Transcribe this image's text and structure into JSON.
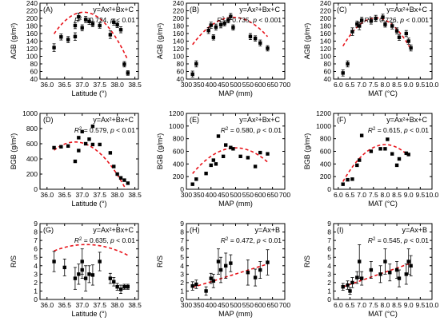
{
  "chart_data": [
    {
      "id": "A",
      "type": "scatter",
      "label": "(A)",
      "formula": "y=Ax²+Bx+C",
      "stat": {
        "r2": "0.724",
        "p": "< 0.01"
      },
      "xlabel": "Latitude (°)",
      "ylabel": "AGB (g/m²)",
      "xlim": [
        35.8,
        38.6
      ],
      "ylim": [
        40,
        240
      ],
      "xticks": [
        "36.0",
        "36.5",
        "37.0",
        "37.5",
        "38.0",
        "38.5"
      ],
      "yticks": [
        "40",
        "60",
        "80",
        "100",
        "120",
        "140",
        "160",
        "180",
        "200",
        "220",
        "240"
      ],
      "points": [
        [
          36.2,
          123,
          10
        ],
        [
          36.4,
          151,
          8
        ],
        [
          36.6,
          144,
          8
        ],
        [
          36.8,
          152,
          10
        ],
        [
          36.8,
          181,
          8
        ],
        [
          36.9,
          204,
          10
        ],
        [
          37.0,
          175,
          8
        ],
        [
          37.1,
          197,
          8
        ],
        [
          37.2,
          192,
          8
        ],
        [
          37.3,
          185,
          7
        ],
        [
          37.5,
          181,
          7
        ],
        [
          37.8,
          157,
          10
        ],
        [
          37.9,
          190,
          8
        ],
        [
          38.0,
          183,
          7
        ],
        [
          38.1,
          170,
          8
        ],
        [
          38.2,
          79,
          7
        ],
        [
          38.3,
          56,
          6
        ]
      ],
      "fit": {
        "a": -80,
        "b": 5927,
        "c": -109563
      }
    },
    {
      "id": "B",
      "type": "scatter",
      "label": "(B)",
      "formula": "y=Ax²+Bx+C",
      "stat": {
        "r2": "0.735",
        "p": "< 0.001"
      },
      "xlabel": "MAP (mm)",
      "ylabel": "AGB (g/m²)",
      "xlim": [
        300,
        700
      ],
      "ylim": [
        40,
        240
      ],
      "xticks": [
        "300",
        "350",
        "400",
        "450",
        "500",
        "550",
        "600",
        "650",
        "700"
      ],
      "yticks": [
        "40",
        "60",
        "80",
        "100",
        "120",
        "140",
        "160",
        "180",
        "200",
        "220",
        "240"
      ],
      "points": [
        [
          325,
          53,
          8
        ],
        [
          340,
          80,
          8
        ],
        [
          390,
          168,
          8
        ],
        [
          400,
          182,
          8
        ],
        [
          410,
          150,
          7
        ],
        [
          420,
          177,
          8
        ],
        [
          440,
          183,
          8
        ],
        [
          455,
          187,
          7
        ],
        [
          470,
          195,
          7
        ],
        [
          480,
          205,
          8
        ],
        [
          490,
          176,
          7
        ],
        [
          560,
          152,
          8
        ],
        [
          580,
          147,
          7
        ],
        [
          600,
          135,
          8
        ],
        [
          630,
          121,
          7
        ]
      ],
      "fit": {
        "a": -0.00262,
        "b": 2.571,
        "c": -428
      }
    },
    {
      "id": "C",
      "type": "scatter",
      "label": "(C)",
      "formula": "y=Ax²+Bx+C",
      "stat": {
        "r2": "0.726",
        "p": "< 0.001"
      },
      "xlabel": "MAT (°C)",
      "ylabel": "AGB (g/m²)",
      "xlim": [
        5.8,
        10.0
      ],
      "ylim": [
        40,
        240
      ],
      "xticks": [
        "6.0",
        "6.5",
        "7.0",
        "7.5",
        "8.0",
        "8.5",
        "9.0",
        "9.5",
        "10.0"
      ],
      "yticks": [
        "40",
        "60",
        "80",
        "100",
        "120",
        "140",
        "160",
        "180",
        "200",
        "220",
        "240"
      ],
      "points": [
        [
          6.2,
          56,
          8
        ],
        [
          6.4,
          80,
          8
        ],
        [
          6.6,
          165,
          10
        ],
        [
          6.8,
          185,
          8
        ],
        [
          6.9,
          180,
          10
        ],
        [
          7.0,
          195,
          8
        ],
        [
          7.4,
          193,
          8
        ],
        [
          7.6,
          200,
          8
        ],
        [
          7.9,
          203,
          8
        ],
        [
          8.0,
          184,
          7
        ],
        [
          8.3,
          180,
          8
        ],
        [
          8.5,
          167,
          8
        ],
        [
          8.6,
          150,
          8
        ],
        [
          8.9,
          160,
          8
        ],
        [
          9.0,
          140,
          8
        ],
        [
          9.1,
          122,
          8
        ]
      ],
      "fit": {
        "a": -37.5,
        "b": 570.7,
        "c": -1970
      }
    },
    {
      "id": "D",
      "type": "scatter",
      "label": "(D)",
      "formula": "y=Ax²+Bx+C",
      "stat": {
        "r2": "0.579",
        "p": "< 0.01"
      },
      "xlabel": "Latitude (°)",
      "ylabel": "BGB (g/m²)",
      "xlim": [
        35.8,
        38.6
      ],
      "ylim": [
        0,
        1000
      ],
      "xticks": [
        "36.0",
        "36.5",
        "37.0",
        "37.5",
        "38.0",
        "38.5"
      ],
      "yticks": [
        "0",
        "200",
        "400",
        "600",
        "800",
        "1000"
      ],
      "points": [
        [
          36.2,
          548,
          0
        ],
        [
          36.4,
          560,
          0
        ],
        [
          36.6,
          570,
          0
        ],
        [
          36.8,
          368,
          0
        ],
        [
          36.9,
          510,
          0
        ],
        [
          36.9,
          680,
          0
        ],
        [
          37.0,
          760,
          0
        ],
        [
          37.1,
          600,
          0
        ],
        [
          37.2,
          660,
          0
        ],
        [
          37.3,
          590,
          0
        ],
        [
          37.3,
          830,
          0
        ],
        [
          37.5,
          590,
          0
        ],
        [
          37.8,
          480,
          0
        ],
        [
          37.9,
          300,
          0
        ],
        [
          38.0,
          200,
          0
        ],
        [
          38.1,
          150,
          0
        ],
        [
          38.2,
          120,
          0
        ],
        [
          38.3,
          80,
          0
        ]
      ],
      "fit": {
        "a": -300,
        "b": 22080,
        "c": -405649
      }
    },
    {
      "id": "E",
      "type": "scatter",
      "label": "(E)",
      "formula": "y=Ax²+Bx+C",
      "stat": {
        "r2": "0.580",
        "p": "< 0.01"
      },
      "xlabel": "MAP (mm)",
      "ylabel": "BGB (g/m²)",
      "xlim": [
        300,
        700
      ],
      "ylim": [
        0,
        1200
      ],
      "xticks": [
        "300",
        "350",
        "400",
        "450",
        "500",
        "550",
        "600",
        "650",
        "700"
      ],
      "yticks": [
        "0",
        "200",
        "400",
        "600",
        "800",
        "1000",
        "1200"
      ],
      "points": [
        [
          325,
          80,
          0
        ],
        [
          340,
          160,
          0
        ],
        [
          380,
          250,
          0
        ],
        [
          400,
          380,
          0
        ],
        [
          410,
          460,
          0
        ],
        [
          420,
          400,
          0
        ],
        [
          430,
          840,
          0
        ],
        [
          450,
          520,
          0
        ],
        [
          460,
          700,
          0
        ],
        [
          480,
          660,
          0
        ],
        [
          490,
          640,
          0
        ],
        [
          520,
          520,
          0
        ],
        [
          550,
          500,
          0
        ],
        [
          580,
          360,
          0
        ],
        [
          600,
          580,
          0
        ],
        [
          630,
          560,
          0
        ]
      ],
      "fit": {
        "a": -0.0133,
        "b": 13.3,
        "c": -2670
      }
    },
    {
      "id": "F",
      "type": "scatter",
      "label": "(F)",
      "formula": "y=Ax²+Bx+C",
      "stat": {
        "r2": "0.615",
        "p": "< 0.01"
      },
      "xlabel": "MAT (°C)",
      "ylabel": "BGB (g/m²)",
      "xlim": [
        5.8,
        10.0
      ],
      "ylim": [
        0,
        1200
      ],
      "xticks": [
        "6.0",
        "6.5",
        "7.0",
        "7.5",
        "8.0",
        "8.5",
        "9.0",
        "9.5",
        "10.0"
      ],
      "yticks": [
        "0",
        "200",
        "400",
        "600",
        "800",
        "1000",
        "1200"
      ],
      "points": [
        [
          6.2,
          80,
          0
        ],
        [
          6.4,
          150,
          0
        ],
        [
          6.6,
          160,
          0
        ],
        [
          6.8,
          380,
          0
        ],
        [
          6.9,
          460,
          0
        ],
        [
          7.0,
          850,
          0
        ],
        [
          7.4,
          600,
          0
        ],
        [
          7.8,
          640,
          0
        ],
        [
          8.0,
          640,
          0
        ],
        [
          8.1,
          790,
          0
        ],
        [
          8.3,
          560,
          0
        ],
        [
          8.5,
          380,
          0
        ],
        [
          8.6,
          480,
          0
        ],
        [
          8.9,
          570,
          0
        ],
        [
          9.0,
          550,
          0
        ]
      ],
      "fit": {
        "a": -180,
        "b": 2881,
        "c": -10822
      }
    },
    {
      "id": "G",
      "type": "scatter",
      "label": "(G)",
      "formula": "y=Ax²+Bx+C",
      "stat": {
        "r2": "0.635",
        "p": "< 0.01"
      },
      "xlabel": "Latitude (°)",
      "ylabel": "R/S",
      "xlim": [
        35.8,
        38.6
      ],
      "ylim": [
        0,
        9
      ],
      "xticks": [
        "36.0",
        "36.5",
        "37.0",
        "37.5",
        "38.0",
        "38.5"
      ],
      "yticks": [
        "0",
        "1",
        "2",
        "3",
        "4",
        "5",
        "6",
        "7",
        "8",
        "9"
      ],
      "points": [
        [
          36.2,
          4.5,
          1.2
        ],
        [
          36.5,
          3.8,
          1.0
        ],
        [
          36.8,
          2.5,
          1.3
        ],
        [
          36.9,
          3.0,
          1.2
        ],
        [
          37.0,
          3.5,
          1.0
        ],
        [
          37.0,
          4.5,
          1.5
        ],
        [
          37.1,
          2.5,
          1.5
        ],
        [
          37.2,
          3.0,
          1.0
        ],
        [
          37.3,
          2.9,
          1.2
        ],
        [
          37.5,
          4.5,
          1.1
        ],
        [
          37.8,
          2.5,
          0.6
        ],
        [
          37.9,
          2.1,
          0.5
        ],
        [
          38.0,
          1.5,
          0.4
        ],
        [
          38.1,
          1.2,
          0.5
        ],
        [
          38.2,
          1.5,
          0.3
        ],
        [
          38.3,
          1.5,
          0.3
        ]
      ],
      "fit": {
        "a": -0.9,
        "b": 66.8,
        "c": -1233
      }
    },
    {
      "id": "H",
      "type": "scatter",
      "label": "(H)",
      "formula": "y=Ax+B",
      "stat": {
        "r2": "0.472",
        "p": "< 0.01"
      },
      "xlabel": "MAP (mm)",
      "ylabel": "R/S",
      "xlim": [
        300,
        700
      ],
      "ylim": [
        0,
        9
      ],
      "xticks": [
        "300",
        "350",
        "400",
        "450",
        "500",
        "550",
        "600",
        "650",
        "700"
      ],
      "yticks": [
        "0",
        "1",
        "2",
        "3",
        "4",
        "5",
        "6",
        "7",
        "8",
        "9"
      ],
      "points": [
        [
          325,
          1.6,
          0.5
        ],
        [
          340,
          1.8,
          0.5
        ],
        [
          380,
          1.0,
          0.5
        ],
        [
          400,
          2.5,
          0.6
        ],
        [
          410,
          2.2,
          0.8
        ],
        [
          430,
          4.5,
          1.5
        ],
        [
          440,
          3.5,
          1.5
        ],
        [
          460,
          4.0,
          1.5
        ],
        [
          480,
          4.3,
          1.0
        ],
        [
          550,
          3.2,
          1.5
        ],
        [
          580,
          2.6,
          1.0
        ],
        [
          600,
          3.5,
          1.0
        ],
        [
          630,
          4.4,
          1.5
        ]
      ],
      "fit": {
        "a": 0.0091,
        "b": -1.53
      }
    },
    {
      "id": "I",
      "type": "scatter",
      "label": "(I)",
      "formula": "y=Ax+B",
      "stat": {
        "r2": "0.545",
        "p": "< 0.01"
      },
      "xlabel": "MAT (°C)",
      "ylabel": "R/S",
      "xlim": [
        5.8,
        10.0
      ],
      "ylim": [
        0,
        9
      ],
      "xticks": [
        "6.0",
        "6.5",
        "7.0",
        "7.5",
        "8.0",
        "8.5",
        "9.0",
        "9.5",
        "10.0"
      ],
      "yticks": [
        "0",
        "1",
        "2",
        "3",
        "4",
        "5",
        "6",
        "7",
        "8",
        "9"
      ],
      "points": [
        [
          6.2,
          1.5,
          0.4
        ],
        [
          6.4,
          1.7,
          0.5
        ],
        [
          6.5,
          1.0,
          0.4
        ],
        [
          6.6,
          2.0,
          0.6
        ],
        [
          6.8,
          2.6,
          0.7
        ],
        [
          6.9,
          4.5,
          2.0
        ],
        [
          7.0,
          2.5,
          0.8
        ],
        [
          7.4,
          3.5,
          1.0
        ],
        [
          7.8,
          3.0,
          1.0
        ],
        [
          8.0,
          4.5,
          1.5
        ],
        [
          8.2,
          3.2,
          1.0
        ],
        [
          8.5,
          3.5,
          1.0
        ],
        [
          8.6,
          2.5,
          1.0
        ],
        [
          8.9,
          3.0,
          1.2
        ],
        [
          9.0,
          4.5,
          1.5
        ],
        [
          9.1,
          4.0,
          1.2
        ]
      ],
      "fit": {
        "a": 0.97,
        "b": -4.52
      }
    }
  ]
}
